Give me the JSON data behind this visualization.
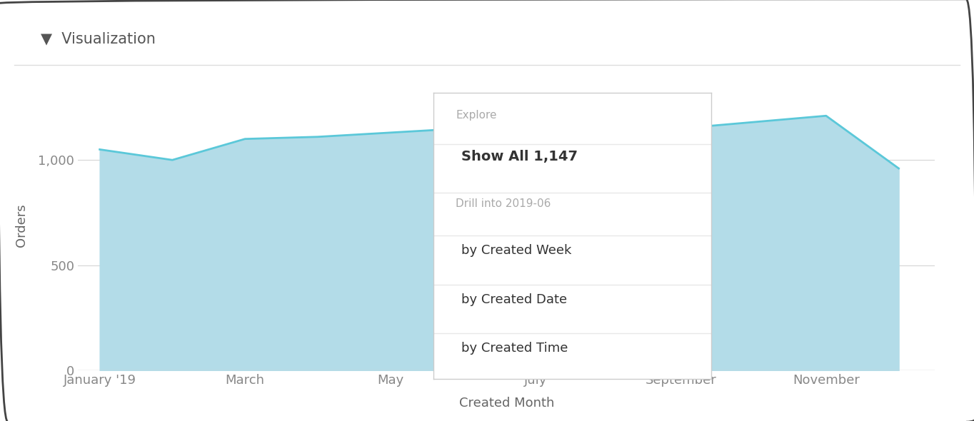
{
  "title": "Visualization",
  "xlabel": "Created Month",
  "ylabel": "Orders",
  "background_color": "#ffffff",
  "chart_bg": "#ffffff",
  "area_fill_color": "#b3dce8",
  "line_color": "#5bc8d9",
  "grid_color": "#d5d5d5",
  "x_values": [
    0,
    1,
    2,
    3,
    4,
    5,
    6,
    7,
    8,
    9,
    10,
    11
  ],
  "y_values": [
    1050,
    1000,
    1100,
    1110,
    1130,
    1150,
    1200,
    1170,
    1150,
    1180,
    1210,
    960
  ],
  "yticks": [
    0,
    500,
    1000
  ],
  "ylim": [
    0,
    1380
  ],
  "xlim": [
    -0.3,
    11.5
  ],
  "tick_labels": [
    "January '19",
    "March",
    "May",
    "July",
    "September",
    "November"
  ],
  "tick_positions": [
    0,
    2,
    4,
    6,
    8,
    10
  ],
  "popup_title": "Explore",
  "popup_item1": "Show All 1,147",
  "popup_subtitle": "Drill into 2019-06",
  "popup_item2": "by Created Week",
  "popup_item3": "by Created Date",
  "popup_item4": "by Created Time",
  "outer_border_color": "#444444",
  "title_color": "#555555",
  "label_color": "#666666",
  "tick_color": "#888888",
  "popup_text_dark": "#333333",
  "popup_text_gray": "#aaaaaa",
  "separator_color": "#e8e8e8"
}
